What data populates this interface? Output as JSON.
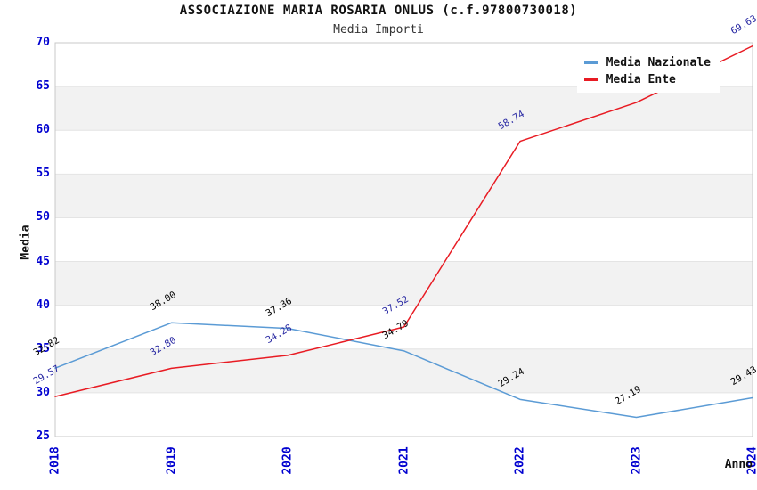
{
  "header": {
    "title": "ASSOCIAZIONE MARIA ROSARIA ONLUS (c.f.97800730018)",
    "subtitle": "Media Importi"
  },
  "colors": {
    "nazionale_line": "#5b9bd5",
    "ente_line": "#e81b23",
    "axis_tick_text": "#0000d0",
    "nazionale_label_text": "#000000",
    "ente_label_text": "#2929a3",
    "band_fill": "#f2f2f2",
    "grid_line": "#e4e4e4",
    "plot_border": "#c8c8c8"
  },
  "legend": {
    "items": [
      {
        "label": "Media Nazionale"
      },
      {
        "label": "Media Ente"
      }
    ]
  },
  "chart_data": {
    "type": "line",
    "title": "ASSOCIAZIONE MARIA ROSARIA ONLUS (c.f.97800730018)",
    "subtitle": "Media Importi",
    "xlabel": "Anno",
    "ylabel": "Media",
    "x": [
      "2018",
      "2019",
      "2020",
      "2021",
      "2022",
      "2023",
      "2024"
    ],
    "series": [
      {
        "name": "Media Nazionale",
        "color": "#5b9bd5",
        "label_color": "#000000",
        "values": [
          32.82,
          38.0,
          37.36,
          34.79,
          29.24,
          27.19,
          29.43
        ],
        "labels": [
          "32.82",
          "38.00",
          "37.36",
          "34.79",
          "29.24",
          "27.19",
          "29.43"
        ]
      },
      {
        "name": "Media Ente",
        "color": "#e81b23",
        "label_color": "#2929a3",
        "values": [
          29.57,
          32.8,
          34.28,
          37.52,
          58.74,
          63.17,
          69.63
        ],
        "labels": [
          "29.57",
          "32.80",
          "34.28",
          "37.52",
          "58.74",
          "63.17",
          "69.63"
        ]
      }
    ],
    "ylim": [
      25,
      70
    ],
    "ytick_step": 5,
    "yticks": [
      "25",
      "30",
      "35",
      "40",
      "45",
      "50",
      "55",
      "60",
      "65",
      "70"
    ],
    "grid": true,
    "alternating_bands": true,
    "legend_position": "top-right",
    "data_labels": true
  }
}
